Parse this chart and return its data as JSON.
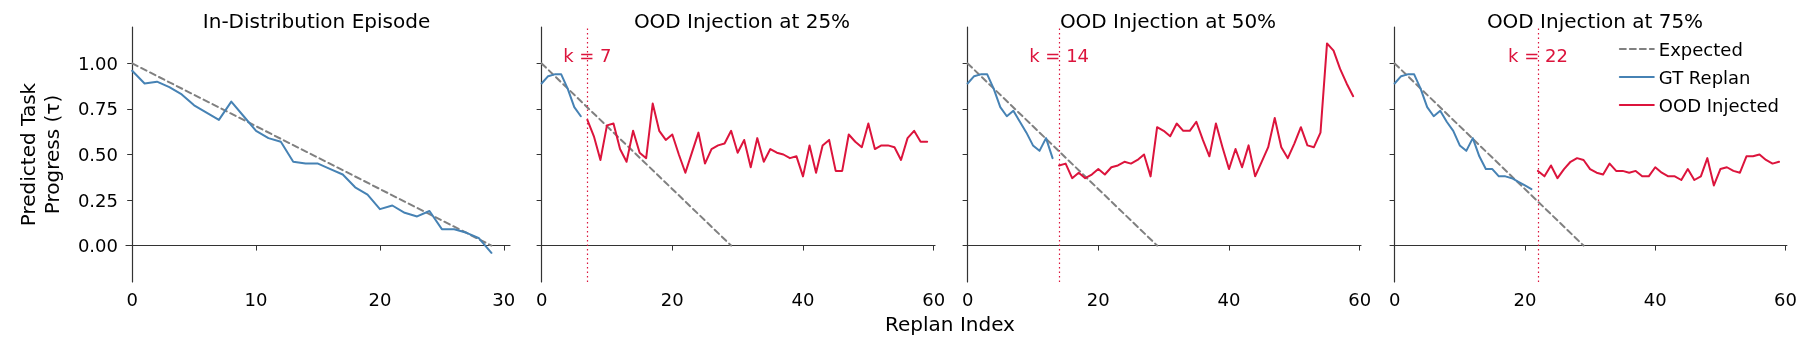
{
  "chart_data": [
    {
      "type": "line",
      "title": "In-Distribution Episode",
      "ylabel": "Predicted Task\nProgress (τ)",
      "xlim": [
        -0.5,
        30.5
      ],
      "xticks": [
        0,
        10,
        20,
        30
      ],
      "ylim": [
        -0.2,
        1.2
      ],
      "yticks": [
        {
          "value": 0,
          "label": "0.00"
        },
        {
          "value": 0.25,
          "label": "0.25"
        },
        {
          "value": 0.5,
          "label": "0.50"
        },
        {
          "value": 0.75,
          "label": "0.75"
        },
        {
          "value": 1,
          "label": "1.00"
        }
      ],
      "grid": false,
      "legend": false,
      "marker": "none",
      "series": [
        {
          "color": "#808080",
          "line_style": "dashed",
          "x": [
            0,
            29
          ],
          "values": [
            1,
            0
          ]
        },
        {
          "color": "#4682b4",
          "x": [
            0,
            1,
            2,
            3,
            4,
            5,
            6,
            7,
            8,
            9,
            10,
            11,
            12,
            13,
            14,
            15,
            16,
            17,
            18,
            19,
            20,
            21,
            22,
            23,
            24,
            25,
            26,
            27,
            28,
            29
          ],
          "values": [
            0.96,
            0.89,
            0.9,
            0.87,
            0.83,
            0.77,
            0.73,
            0.69,
            0.79,
            0.71,
            0.63,
            0.59,
            0.57,
            0.46,
            0.45,
            0.45,
            0.42,
            0.39,
            0.32,
            0.28,
            0.2,
            0.22,
            0.18,
            0.16,
            0.19,
            0.09,
            0.09,
            0.07,
            0.04,
            -0.04
          ]
        }
      ]
    },
    {
      "type": "line",
      "title": "OOD Injection at 25%",
      "xlabel": "Replan Index",
      "xlim": [
        -0.4,
        60.2
      ],
      "xticks": [
        0,
        20,
        40,
        60
      ],
      "ylim": [
        -0.2,
        1.2
      ],
      "yticks": [
        0,
        0.25,
        0.5,
        0.75,
        1
      ],
      "tick_labels": "x",
      "grid": false,
      "legend": false,
      "marker": "none",
      "ref_lines": [
        {
          "axis": "x",
          "value": 7,
          "label": "k = 7",
          "color": "#dc143c",
          "line_style": "dotted"
        }
      ],
      "series": [
        {
          "color": "#808080",
          "line_style": "dashed",
          "x": [
            0,
            29
          ],
          "values": [
            1,
            0
          ]
        },
        {
          "color": "#4682b4",
          "x": [
            0,
            1,
            2,
            3,
            4,
            5,
            6
          ],
          "values": [
            0.89,
            0.93,
            0.94,
            0.94,
            0.86,
            0.76,
            0.71
          ]
        },
        {
          "color": "#dc143c",
          "x": [
            7,
            8,
            9,
            10,
            11,
            12,
            13,
            14,
            15,
            16,
            17,
            18,
            19,
            20,
            21,
            22,
            23,
            24,
            25,
            26,
            27,
            28,
            29,
            30,
            31,
            32,
            33,
            34,
            35,
            36,
            37,
            38,
            39,
            40,
            41,
            42,
            43,
            44,
            45,
            46,
            47,
            48,
            49,
            50,
            51,
            52,
            53,
            54,
            55,
            56,
            57,
            58,
            59
          ],
          "values": [
            0.69,
            0.6,
            0.47,
            0.66,
            0.67,
            0.53,
            0.46,
            0.63,
            0.51,
            0.48,
            0.78,
            0.63,
            0.58,
            0.61,
            0.5,
            0.4,
            0.51,
            0.62,
            0.45,
            0.53,
            0.55,
            0.56,
            0.63,
            0.51,
            0.58,
            0.43,
            0.59,
            0.46,
            0.53,
            0.51,
            0.5,
            0.48,
            0.49,
            0.38,
            0.55,
            0.4,
            0.55,
            0.58,
            0.41,
            0.41,
            0.61,
            0.57,
            0.54,
            0.67,
            0.53,
            0.55,
            0.55,
            0.54,
            0.47,
            0.59,
            0.63,
            0.57,
            0.57
          ]
        }
      ]
    },
    {
      "type": "line",
      "title": "OOD Injection at 50%",
      "xlim": [
        -0.4,
        60.2
      ],
      "xticks": [
        0,
        20,
        40,
        60
      ],
      "ylim": [
        -0.2,
        1.2
      ],
      "yticks": [
        0,
        0.25,
        0.5,
        0.75,
        1
      ],
      "tick_labels": "x",
      "grid": false,
      "legend": false,
      "marker": "none",
      "ref_lines": [
        {
          "axis": "x",
          "value": 14,
          "label": "k = 14",
          "color": "#dc143c",
          "line_style": "dotted"
        }
      ],
      "series": [
        {
          "color": "#808080",
          "line_style": "dashed",
          "x": [
            0,
            29
          ],
          "values": [
            1,
            0
          ]
        },
        {
          "color": "#4682b4",
          "x": [
            0,
            1,
            2,
            3,
            4,
            5,
            6,
            7,
            8,
            9,
            10,
            11,
            12,
            13
          ],
          "values": [
            0.89,
            0.93,
            0.94,
            0.94,
            0.86,
            0.76,
            0.71,
            0.74,
            0.68,
            0.62,
            0.55,
            0.52,
            0.59,
            0.48
          ]
        },
        {
          "color": "#dc143c",
          "x": [
            14,
            15,
            16,
            17,
            18,
            19,
            20,
            21,
            22,
            23,
            24,
            25,
            26,
            27,
            28,
            29,
            30,
            31,
            32,
            33,
            34,
            35,
            36,
            37,
            38,
            39,
            40,
            41,
            42,
            43,
            44,
            45,
            46,
            47,
            48,
            49,
            50,
            51,
            52,
            53,
            54,
            55,
            56,
            57,
            58,
            59
          ],
          "values": [
            0.44,
            0.45,
            0.37,
            0.4,
            0.37,
            0.39,
            0.42,
            0.39,
            0.43,
            0.44,
            0.46,
            0.45,
            0.47,
            0.5,
            0.38,
            0.65,
            0.63,
            0.6,
            0.67,
            0.63,
            0.63,
            0.68,
            0.58,
            0.49,
            0.67,
            0.54,
            0.42,
            0.53,
            0.43,
            0.55,
            0.38,
            0.46,
            0.54,
            0.7,
            0.54,
            0.48,
            0.56,
            0.65,
            0.55,
            0.54,
            0.62,
            1.11,
            1.07,
            0.97,
            0.89,
            0.82
          ]
        }
      ]
    },
    {
      "type": "line",
      "title": "OOD Injection at 75%",
      "xlim": [
        -0.4,
        60.2
      ],
      "xticks": [
        0,
        20,
        40,
        60
      ],
      "ylim": [
        -0.2,
        1.2
      ],
      "yticks": [
        0,
        0.25,
        0.5,
        0.75,
        1
      ],
      "tick_labels": "x",
      "grid": false,
      "legend": "top right",
      "marker": "none",
      "ref_lines": [
        {
          "axis": "x",
          "value": 22,
          "label": "k = 22",
          "color": "#dc143c",
          "line_style": "dotted"
        }
      ],
      "series": [
        {
          "name": "Expected",
          "color": "#808080",
          "line_style": "dashed",
          "x": [
            0,
            29
          ],
          "values": [
            1,
            0
          ]
        },
        {
          "name": "GT Replan",
          "color": "#4682b4",
          "x": [
            0,
            1,
            2,
            3,
            4,
            5,
            6,
            7,
            8,
            9,
            10,
            11,
            12,
            13,
            14,
            15,
            16,
            17,
            18,
            19,
            20,
            21
          ],
          "values": [
            0.89,
            0.93,
            0.94,
            0.94,
            0.86,
            0.76,
            0.71,
            0.74,
            0.68,
            0.63,
            0.55,
            0.52,
            0.59,
            0.49,
            0.42,
            0.42,
            0.38,
            0.38,
            0.37,
            0.35,
            0.33,
            0.31
          ]
        },
        {
          "name": "OOD Injected",
          "color": "#dc143c",
          "x": [
            22,
            23,
            24,
            25,
            26,
            27,
            28,
            29,
            30,
            31,
            32,
            33,
            34,
            35,
            36,
            37,
            38,
            39,
            40,
            41,
            42,
            43,
            44,
            45,
            46,
            47,
            48,
            49,
            50,
            51,
            52,
            53,
            54,
            55,
            56,
            57,
            58,
            59
          ],
          "values": [
            0.41,
            0.38,
            0.44,
            0.37,
            0.42,
            0.46,
            0.48,
            0.47,
            0.42,
            0.4,
            0.39,
            0.45,
            0.41,
            0.41,
            0.4,
            0.41,
            0.38,
            0.38,
            0.43,
            0.4,
            0.38,
            0.38,
            0.36,
            0.42,
            0.36,
            0.38,
            0.48,
            0.33,
            0.42,
            0.43,
            0.41,
            0.4,
            0.49,
            0.49,
            0.5,
            0.47,
            0.45,
            0.46
          ]
        }
      ]
    }
  ]
}
